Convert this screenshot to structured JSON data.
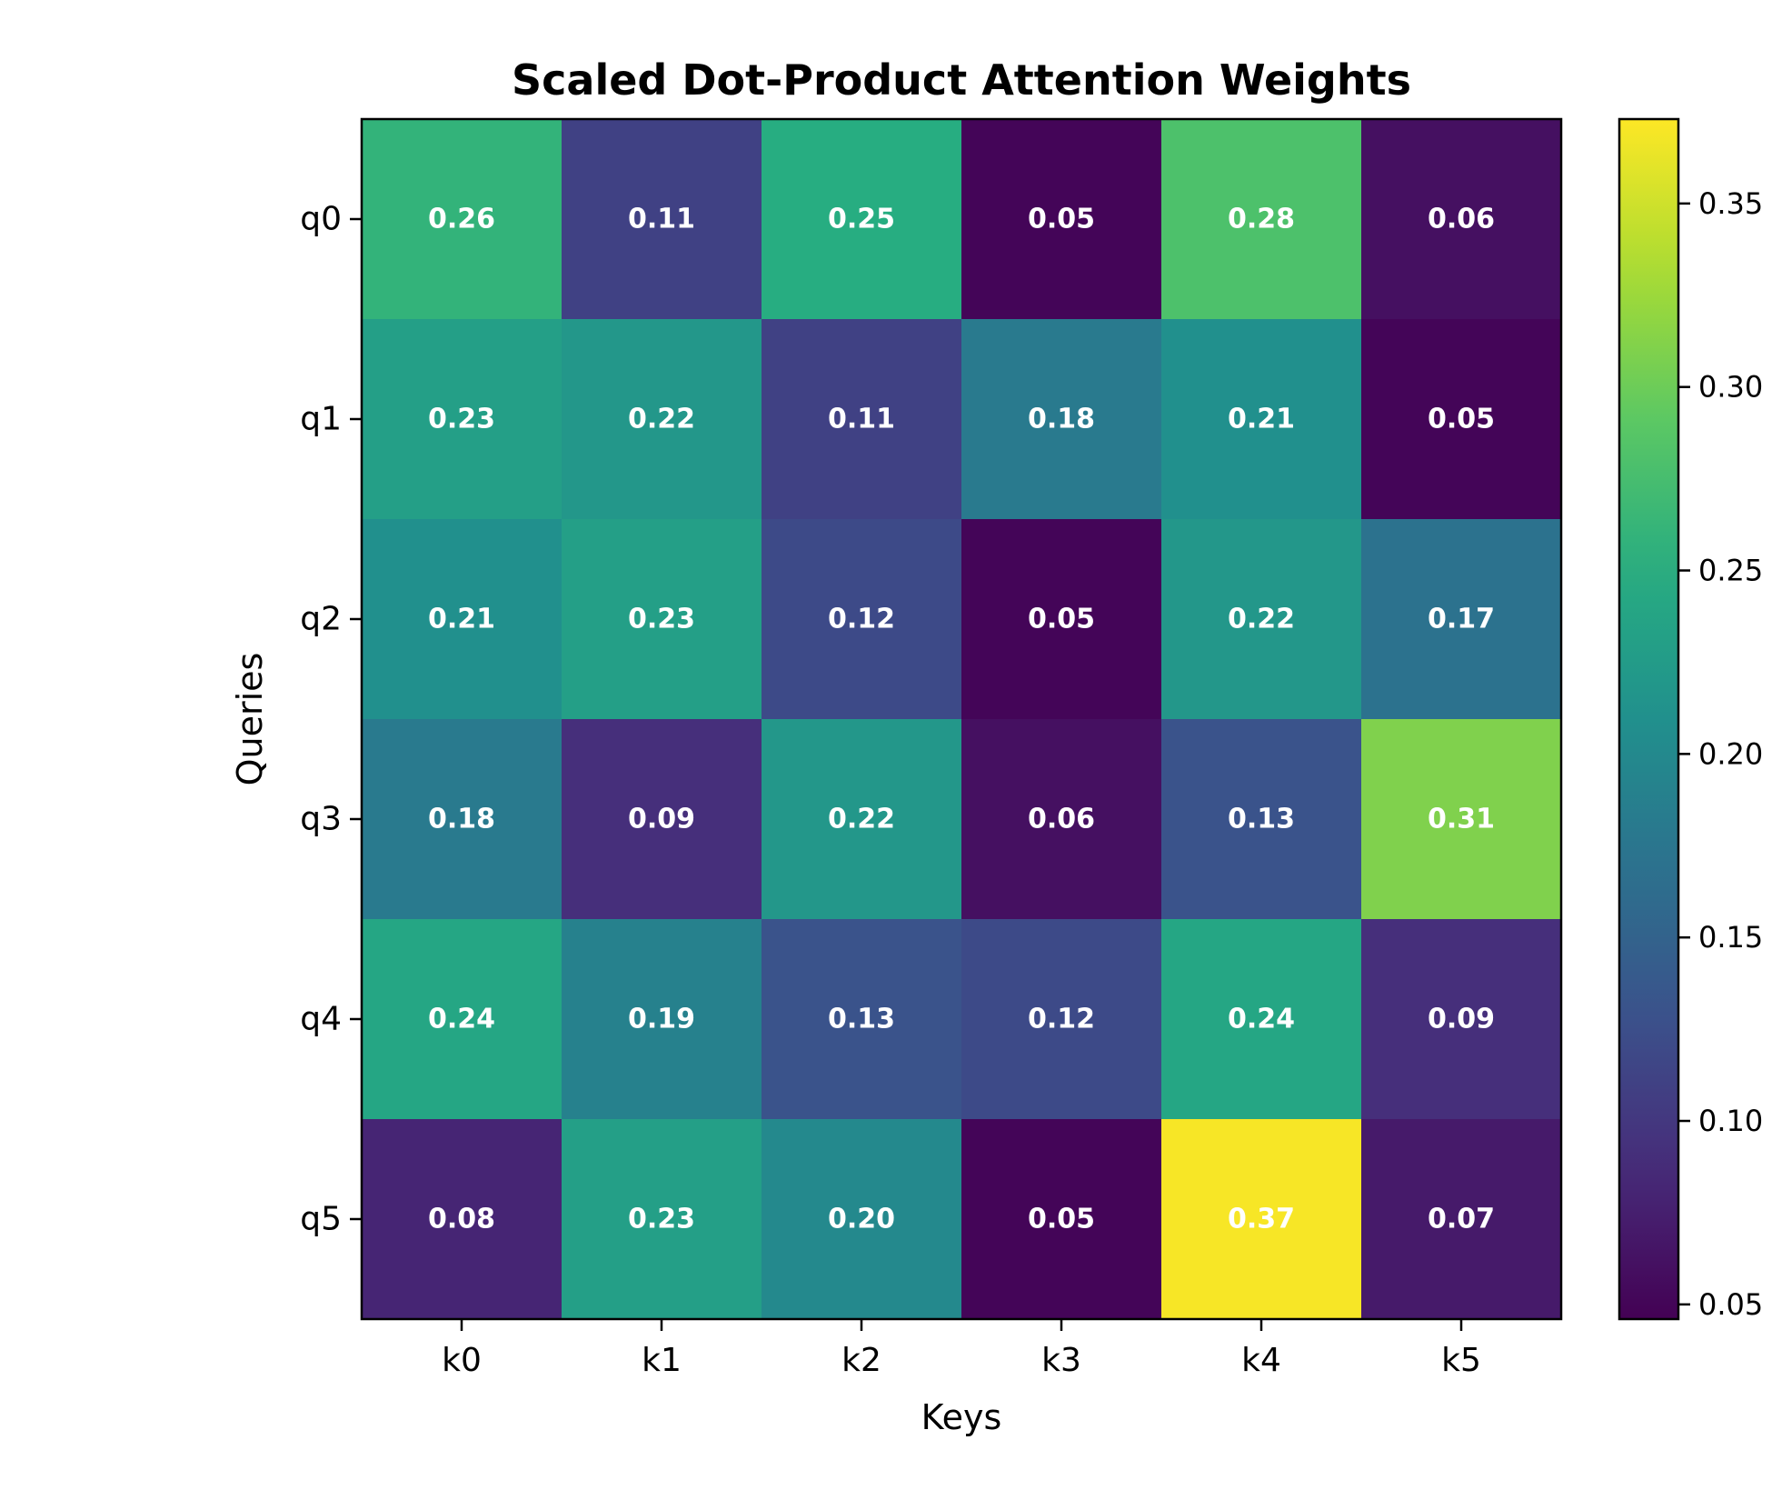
{
  "chart_data": {
    "type": "heatmap",
    "title": "Scaled Dot-Product Attention Weights",
    "xlabel": "Keys",
    "ylabel": "Queries",
    "x_categories": [
      "k0",
      "k1",
      "k2",
      "k3",
      "k4",
      "k5"
    ],
    "y_categories": [
      "q0",
      "q1",
      "q2",
      "q3",
      "q4",
      "q5"
    ],
    "values": [
      [
        0.26,
        0.11,
        0.25,
        0.05,
        0.28,
        0.06
      ],
      [
        0.23,
        0.22,
        0.11,
        0.18,
        0.21,
        0.05
      ],
      [
        0.21,
        0.23,
        0.12,
        0.05,
        0.22,
        0.17
      ],
      [
        0.18,
        0.09,
        0.22,
        0.06,
        0.13,
        0.31
      ],
      [
        0.24,
        0.19,
        0.13,
        0.12,
        0.24,
        0.09
      ],
      [
        0.08,
        0.23,
        0.2,
        0.05,
        0.37,
        0.07
      ]
    ],
    "annotation_labels": [
      [
        "0.26",
        "0.11",
        "0.25",
        "0.05",
        "0.28",
        "0.06"
      ],
      [
        "0.23",
        "0.22",
        "0.11",
        "0.18",
        "0.21",
        "0.05"
      ],
      [
        "0.21",
        "0.23",
        "0.12",
        "0.05",
        "0.22",
        "0.17"
      ],
      [
        "0.18",
        "0.09",
        "0.22",
        "0.06",
        "0.13",
        "0.31"
      ],
      [
        "0.24",
        "0.19",
        "0.13",
        "0.12",
        "0.24",
        "0.09"
      ],
      [
        "0.08",
        "0.23",
        "0.20",
        "0.05",
        "0.37",
        "0.07"
      ]
    ],
    "colormap": "viridis",
    "color_range": [
      0.046,
      0.373
    ],
    "colorbar_ticks": [
      0.05,
      0.1,
      0.15,
      0.2,
      0.25,
      0.3,
      0.35
    ],
    "colorbar_tick_labels": [
      "0.05",
      "0.10",
      "0.15",
      "0.20",
      "0.25",
      "0.30",
      "0.35"
    ],
    "annotation_color": "#ffffff",
    "grid": false
  }
}
